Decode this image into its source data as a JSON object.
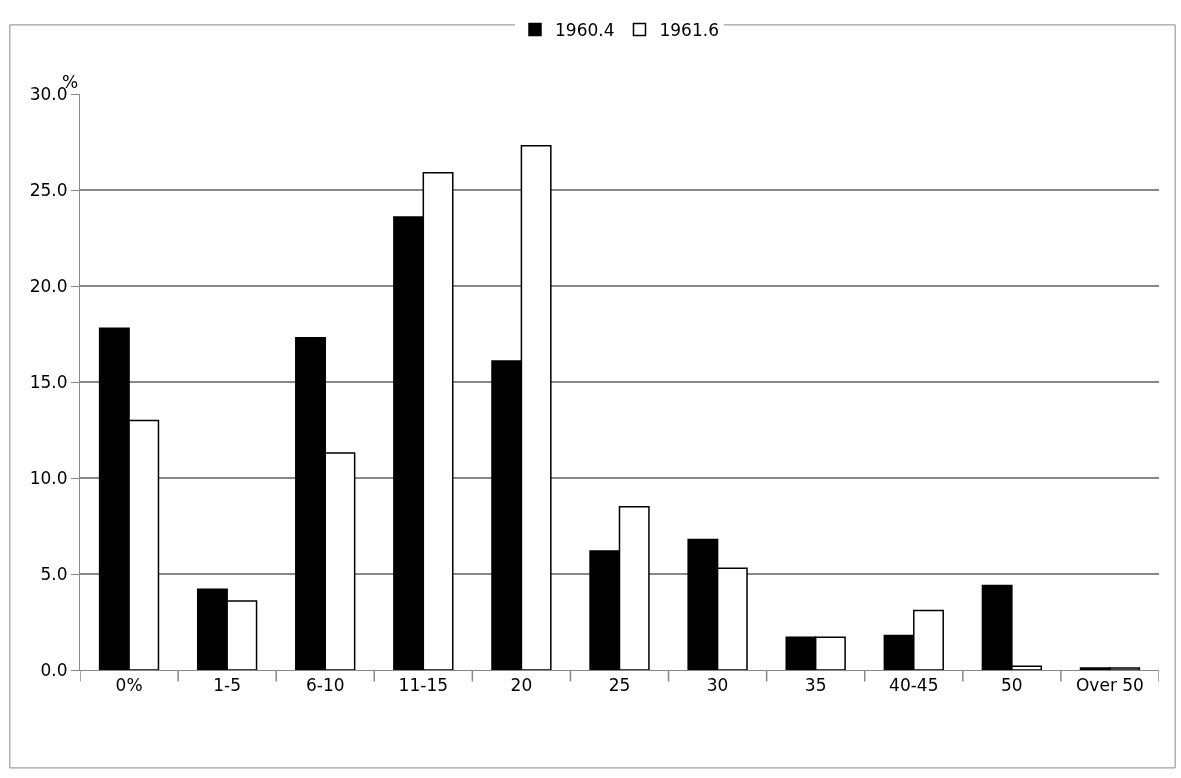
{
  "chart_data": {
    "type": "bar",
    "ylabel": "%",
    "categories": [
      "0%",
      "1-5",
      "6-10",
      "11-15",
      "20",
      "25",
      "30",
      "35",
      "40-45",
      "50",
      "Over 50"
    ],
    "series": [
      {
        "name": "1960.4",
        "color": "#000000",
        "values": [
          17.8,
          4.2,
          17.3,
          23.6,
          16.1,
          6.2,
          6.8,
          1.7,
          1.8,
          4.4,
          0.1
        ]
      },
      {
        "name": "1961.6",
        "color": "#ffffff",
        "values": [
          13.0,
          3.6,
          11.3,
          25.9,
          27.3,
          8.5,
          5.3,
          1.7,
          3.1,
          0.2,
          0.1
        ]
      }
    ],
    "ylim": [
      0,
      30
    ],
    "yticks": [
      {
        "value": 0,
        "label": "0.0"
      },
      {
        "value": 5,
        "label": "5.0"
      },
      {
        "value": 10,
        "label": "10.0"
      },
      {
        "value": 15,
        "label": "15.0"
      },
      {
        "value": 20,
        "label": "20.0"
      },
      {
        "value": 25,
        "label": "25.0"
      },
      {
        "value": 30,
        "label": "30.0"
      }
    ],
    "grid": "y",
    "legend": "top"
  }
}
